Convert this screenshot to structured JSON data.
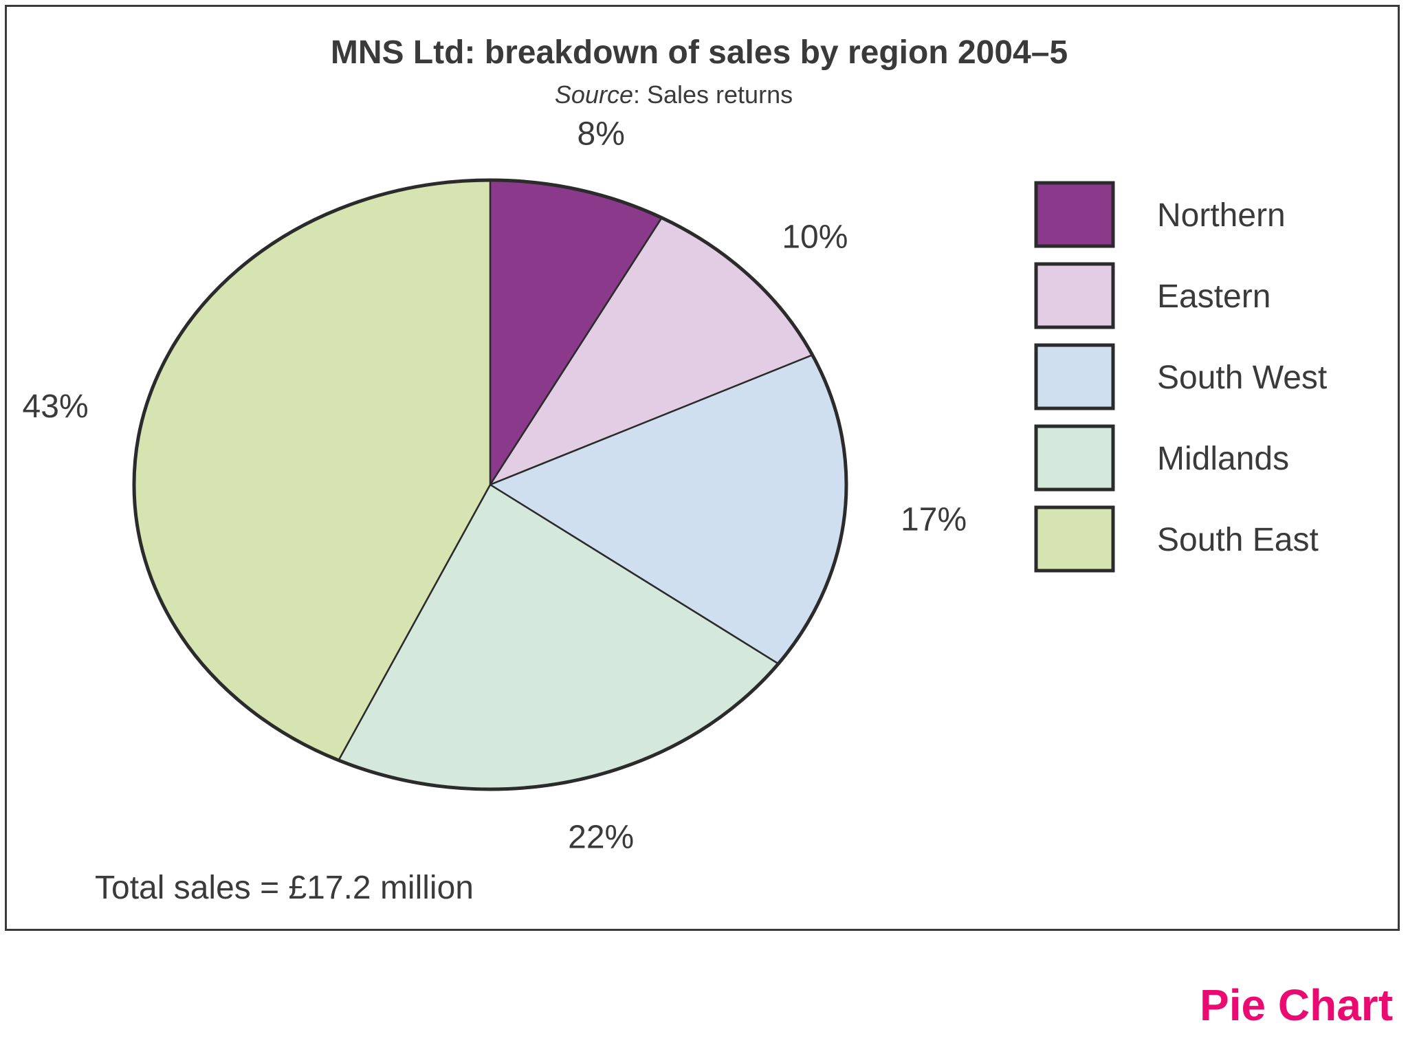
{
  "chart_data": {
    "type": "pie",
    "title": "MNS Ltd: breakdown of sales by region 2004–5",
    "subtitle_prefix": "Source",
    "subtitle_rest": ": Sales returns",
    "slices": [
      {
        "name": "Northern",
        "value": 8,
        "label": "8%",
        "color": "#8b3a8b"
      },
      {
        "name": "Eastern",
        "value": 10,
        "label": "10%",
        "color": "#e2cde4"
      },
      {
        "name": "South West",
        "value": 17,
        "label": "17%",
        "color": "#cfdff0"
      },
      {
        "name": "Midlands",
        "value": 22,
        "label": "22%",
        "color": "#d4e8dc"
      },
      {
        "name": "South East",
        "value": 43,
        "label": "43%",
        "color": "#d6e4b2"
      }
    ],
    "start_angle": "12 o'clock",
    "direction": "clockwise",
    "legend_placement": "right",
    "footnote": "Total sales = £17.2 million"
  },
  "corner_tag": "Pie Chart"
}
